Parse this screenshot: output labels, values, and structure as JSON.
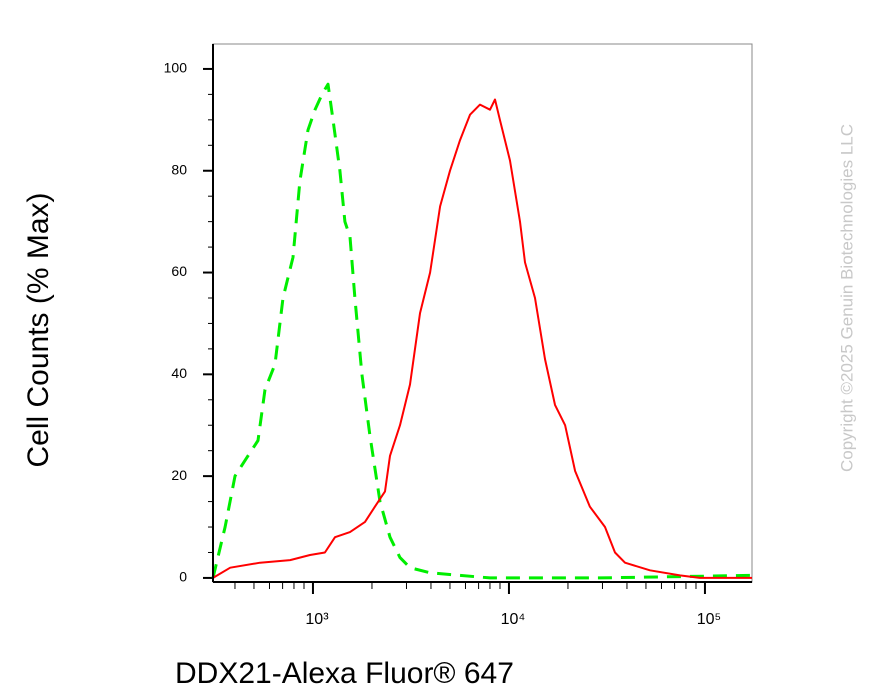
{
  "chart_data": {
    "type": "line",
    "xlabel": "DDX21-Alexa Fluor® 647",
    "ylabel": "Cell Counts (% Max)",
    "watermark": "Copyright ©2025 Genuin Biotechnologies LLC",
    "xscale": "log",
    "xlim": [
      309,
      173800
    ],
    "ylim": [
      -0.8,
      104.9
    ],
    "xticks": [
      {
        "value": 1000,
        "label": "10³"
      },
      {
        "value": 10000,
        "label": "10⁴"
      },
      {
        "value": 100000,
        "label": "10⁵"
      }
    ],
    "xminorticks": [
      400,
      500,
      600,
      700,
      800,
      900,
      2000,
      3000,
      4000,
      5000,
      6000,
      7000,
      8000,
      9000,
      20000,
      30000,
      40000,
      50000,
      60000,
      70000,
      80000,
      90000
    ],
    "yticks": [
      0,
      20,
      40,
      60,
      80,
      100
    ],
    "yminorticks": [
      5,
      10,
      15,
      25,
      30,
      35,
      45,
      50,
      55,
      65,
      70,
      75,
      85,
      90,
      95
    ],
    "series": [
      {
        "color": "#00ee00",
        "dashed": true,
        "x": [
          309,
          356,
          400,
          466,
          524,
          569,
          640,
          703,
          791,
          858,
          943,
          1024,
          1112,
          1193,
          1265,
          1373,
          1456,
          1545,
          1637,
          1778,
          1953,
          2197,
          2471,
          2780,
          3127,
          3958,
          5627,
          8000,
          29110,
          173800
        ],
        "values": [
          0,
          10,
          20,
          24,
          27,
          37,
          42,
          55,
          63,
          78,
          88,
          92,
          95,
          97,
          90,
          80,
          70,
          67,
          55,
          40,
          28,
          15,
          8,
          4,
          2,
          1,
          0.5,
          0,
          0,
          0.5
        ]
      },
      {
        "color": "#ff0000",
        "dashed": false,
        "x": [
          309,
          378,
          537,
          764,
          966,
          1151,
          1295,
          1545,
          1842,
          2071,
          2330,
          2471,
          2780,
          3127,
          3518,
          3958,
          4452,
          5000,
          5627,
          6329,
          7120,
          8000,
          8486,
          8995,
          10120,
          11380,
          12070,
          13580,
          15280,
          17180,
          19330,
          21740,
          25890,
          30900,
          34750,
          39090,
          52360,
          74470,
          94180,
          173800
        ],
        "values": [
          0,
          2,
          3,
          3.5,
          4.5,
          5,
          8,
          9,
          11,
          14,
          17,
          24,
          30,
          38,
          52,
          60,
          73,
          80,
          86,
          91,
          93,
          92,
          94,
          90,
          82,
          70,
          62,
          55,
          43,
          34,
          30,
          21,
          14,
          10,
          5,
          3,
          1.5,
          0.5,
          0,
          0
        ]
      }
    ]
  }
}
